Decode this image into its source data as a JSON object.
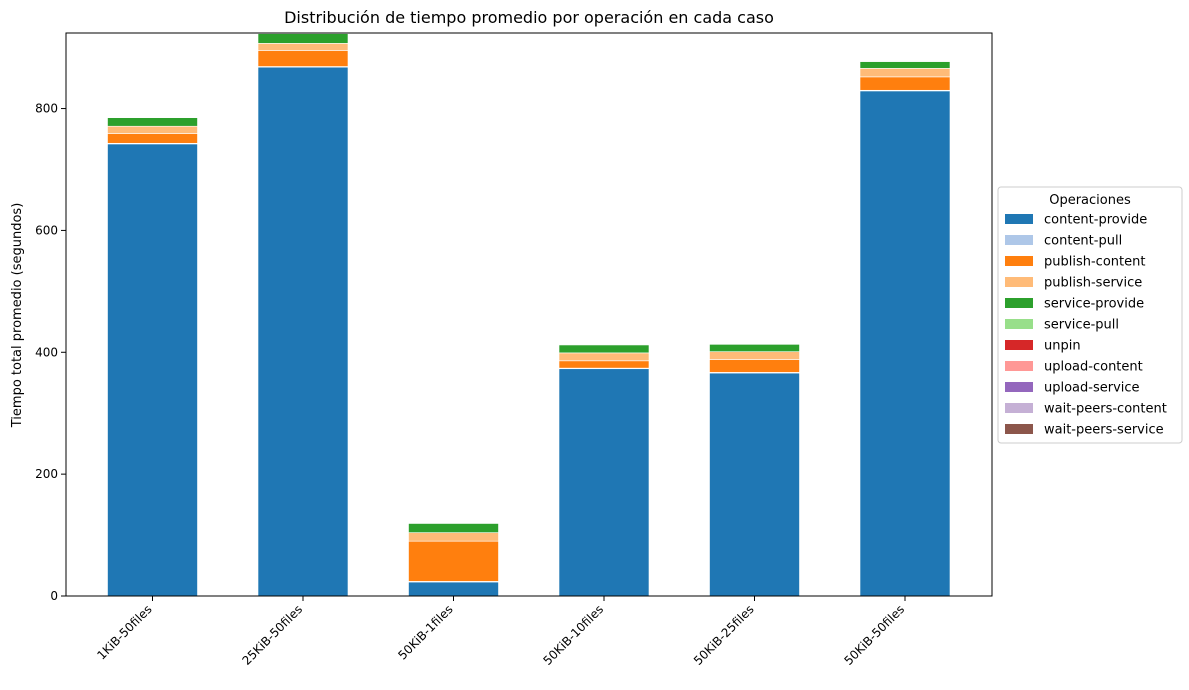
{
  "chart_data": {
    "type": "bar",
    "stacked": true,
    "title": "Distribución de tiempo promedio por operación en cada caso",
    "xlabel": "",
    "ylabel": "Tiempo total promedio (segundos)",
    "ylim": [
      0,
      924
    ],
    "yticks": [
      0,
      200,
      400,
      600,
      800
    ],
    "grid": false,
    "legend_title": "Operaciones",
    "legend_position": "center-right outside",
    "categories": [
      "1KiB-50files",
      "25KiB-50files",
      "50KiB-1files",
      "50KiB-10files",
      "50KiB-25files",
      "50KiB-50files"
    ],
    "series": [
      {
        "name": "content-provide",
        "color": "#1f77b4",
        "values": [
          742,
          868,
          23,
          373,
          366,
          829
        ]
      },
      {
        "name": "content-pull",
        "color": "#aec7e8",
        "values": [
          1,
          1,
          1,
          1,
          1,
          1
        ]
      },
      {
        "name": "publish-content",
        "color": "#ff7f0e",
        "values": [
          16,
          26,
          66,
          12,
          21,
          22
        ]
      },
      {
        "name": "publish-service",
        "color": "#ffbb78",
        "values": [
          12,
          12,
          14,
          13,
          13,
          14
        ]
      },
      {
        "name": "service-provide",
        "color": "#2ca02c",
        "values": [
          14,
          16,
          15,
          13,
          12,
          11
        ]
      },
      {
        "name": "service-pull",
        "color": "#98df8a",
        "values": [
          0,
          0,
          0,
          0,
          0,
          0
        ]
      },
      {
        "name": "unpin",
        "color": "#d62728",
        "values": [
          0,
          0,
          0,
          0,
          0,
          0
        ]
      },
      {
        "name": "upload-content",
        "color": "#ff9896",
        "values": [
          0,
          0,
          0,
          0,
          0,
          0
        ]
      },
      {
        "name": "upload-service",
        "color": "#9467bd",
        "values": [
          0,
          0,
          0,
          0,
          0,
          0
        ]
      },
      {
        "name": "wait-peers-content",
        "color": "#c5b0d5",
        "values": [
          0,
          0,
          0,
          0,
          0,
          0
        ]
      },
      {
        "name": "wait-peers-service",
        "color": "#8c564b",
        "values": [
          0,
          0,
          0,
          0,
          0,
          0
        ]
      }
    ]
  }
}
